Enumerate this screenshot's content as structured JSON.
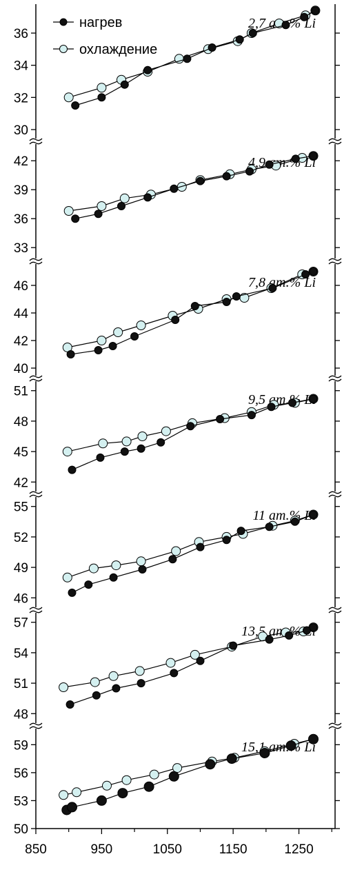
{
  "legend": {
    "heating_label": "нагрев",
    "cooling_label": "охлаждение"
  },
  "colors": {
    "heating_fill": "#111111",
    "cooling_fill": "#d4f0f0",
    "line": "#000000"
  },
  "chart_data": [
    {
      "type": "line",
      "label": "2,7 ат.% Li",
      "ylim": [
        29.4,
        37.8
      ],
      "yticks": [
        "30",
        "32",
        "34",
        "36"
      ],
      "series": [
        {
          "name": "нагрев",
          "x": [
            910,
            950,
            985,
            1020,
            1080,
            1118,
            1160,
            1180,
            1230,
            1258,
            1275
          ],
          "y": [
            31.5,
            32.0,
            32.8,
            33.7,
            34.4,
            35.1,
            35.6,
            36.0,
            36.5,
            37.0,
            37.4
          ]
        },
        {
          "name": "охлаждение",
          "x": [
            900,
            950,
            980,
            1020,
            1068,
            1112,
            1157,
            1178,
            1220,
            1260,
            1275
          ],
          "y": [
            32.0,
            32.6,
            33.1,
            33.6,
            34.4,
            35.0,
            35.5,
            36.0,
            36.6,
            37.1,
            37.4
          ]
        }
      ]
    },
    {
      "type": "line",
      "label": "4,9 ат.% Li",
      "ylim": [
        31.8,
        43.8
      ],
      "yticks": [
        "33",
        "36",
        "39",
        "42"
      ],
      "series": [
        {
          "name": "нагрев",
          "x": [
            910,
            945,
            980,
            1020,
            1060,
            1100,
            1140,
            1175,
            1205,
            1245,
            1272
          ],
          "y": [
            36.0,
            36.5,
            37.3,
            38.2,
            39.1,
            39.9,
            40.4,
            40.9,
            41.6,
            42.2,
            42.5
          ]
        },
        {
          "name": "охлаждение",
          "x": [
            900,
            950,
            985,
            1025,
            1072,
            1100,
            1145,
            1178,
            1215,
            1255,
            1272
          ],
          "y": [
            36.8,
            37.3,
            38.1,
            38.5,
            39.3,
            40.0,
            40.6,
            41.1,
            41.5,
            42.3,
            42.5
          ]
        }
      ]
    },
    {
      "type": "line",
      "label": "7,8 ат.% Li",
      "ylim": [
        39.4,
        47.6
      ],
      "yticks": [
        "40",
        "42",
        "44",
        "46"
      ],
      "series": [
        {
          "name": "нагрев",
          "x": [
            903,
            945,
            967,
            1000,
            1062,
            1092,
            1140,
            1155,
            1210,
            1260,
            1272
          ],
          "y": [
            41.0,
            41.3,
            41.6,
            42.3,
            43.5,
            44.5,
            44.8,
            45.2,
            45.8,
            46.8,
            47.0
          ]
        },
        {
          "name": "охлаждение",
          "x": [
            898,
            950,
            975,
            1010,
            1058,
            1097,
            1140,
            1167,
            1208,
            1255,
            1272
          ],
          "y": [
            41.5,
            42.0,
            42.6,
            43.1,
            43.8,
            44.3,
            45.0,
            45.1,
            45.8,
            46.8,
            47.0
          ]
        }
      ]
    },
    {
      "type": "line",
      "label": "9,5 ат.% Li",
      "ylim": [
        41.0,
        52.0
      ],
      "yticks": [
        "42",
        "45",
        "48",
        "51"
      ],
      "series": [
        {
          "name": "нагрев",
          "x": [
            905,
            948,
            985,
            1010,
            1040,
            1085,
            1130,
            1178,
            1208,
            1240,
            1272
          ],
          "y": [
            43.2,
            44.4,
            45.0,
            45.3,
            45.9,
            47.5,
            48.2,
            48.6,
            49.4,
            49.8,
            50.2
          ]
        },
        {
          "name": "охлаждение",
          "x": [
            898,
            952,
            988,
            1012,
            1048,
            1088,
            1137,
            1178,
            1212,
            1244,
            1272
          ],
          "y": [
            45.0,
            45.8,
            46.0,
            46.5,
            47.0,
            47.8,
            48.3,
            48.9,
            49.6,
            49.8,
            50.2
          ]
        }
      ]
    },
    {
      "type": "line",
      "label": "11 ат.% Li",
      "ylim": [
        45.0,
        56.0
      ],
      "yticks": [
        "46",
        "49",
        "52",
        "55"
      ],
      "series": [
        {
          "name": "нагрев",
          "x": [
            905,
            930,
            968,
            1012,
            1058,
            1100,
            1140,
            1162,
            1205,
            1244,
            1272
          ],
          "y": [
            46.5,
            47.3,
            48.0,
            48.8,
            49.8,
            51.0,
            51.7,
            52.6,
            53.0,
            53.5,
            54.2
          ]
        },
        {
          "name": "охлаждение",
          "x": [
            898,
            938,
            972,
            1010,
            1063,
            1098,
            1140,
            1165,
            1210,
            1244,
            1272
          ],
          "y": [
            48.0,
            48.9,
            49.2,
            49.6,
            50.6,
            51.5,
            52.0,
            52.3,
            53.1,
            53.6,
            54.2
          ]
        }
      ]
    },
    {
      "type": "line",
      "label": "13,5 ат.% Li",
      "ylim": [
        47.0,
        58.0
      ],
      "yticks": [
        "48",
        "51",
        "54",
        "57"
      ],
      "series": [
        {
          "name": "нагрев",
          "x": [
            902,
            942,
            972,
            1010,
            1060,
            1100,
            1150,
            1205,
            1235,
            1262,
            1272
          ],
          "y": [
            48.9,
            49.8,
            50.5,
            51.0,
            52.0,
            53.2,
            54.7,
            55.3,
            55.7,
            56.2,
            56.5
          ]
        },
        {
          "name": "охлаждение",
          "x": [
            892,
            940,
            968,
            1008,
            1055,
            1092,
            1148,
            1195,
            1230,
            1257,
            1272
          ],
          "y": [
            50.6,
            51.1,
            51.7,
            52.2,
            53.0,
            53.8,
            54.6,
            55.6,
            56.0,
            56.1,
            56.5
          ]
        }
      ]
    },
    {
      "type": "line",
      "label": "15,1 ат.% Li",
      "ylim": [
        50.0,
        60.8
      ],
      "yticks": [
        "50",
        "53",
        "56",
        "59"
      ],
      "x_ticks": [
        "850",
        "950",
        "1050",
        "1150",
        "1250"
      ],
      "xlim": [
        850,
        1305
      ],
      "series": [
        {
          "name": "нагрев",
          "x": [
            897,
            905,
            950,
            982,
            1022,
            1060,
            1115,
            1148,
            1198,
            1238,
            1272
          ],
          "y": [
            52.0,
            52.3,
            53.0,
            53.8,
            54.5,
            55.6,
            56.9,
            57.5,
            58.1,
            58.9,
            59.6
          ]
        },
        {
          "name": "охлаждение",
          "x": [
            892,
            912,
            958,
            988,
            1030,
            1065,
            1118,
            1152,
            1198,
            1243,
            1272
          ],
          "y": [
            53.6,
            53.9,
            54.6,
            55.2,
            55.8,
            56.5,
            57.2,
            57.6,
            58.3,
            59.1,
            59.6
          ]
        }
      ]
    }
  ]
}
